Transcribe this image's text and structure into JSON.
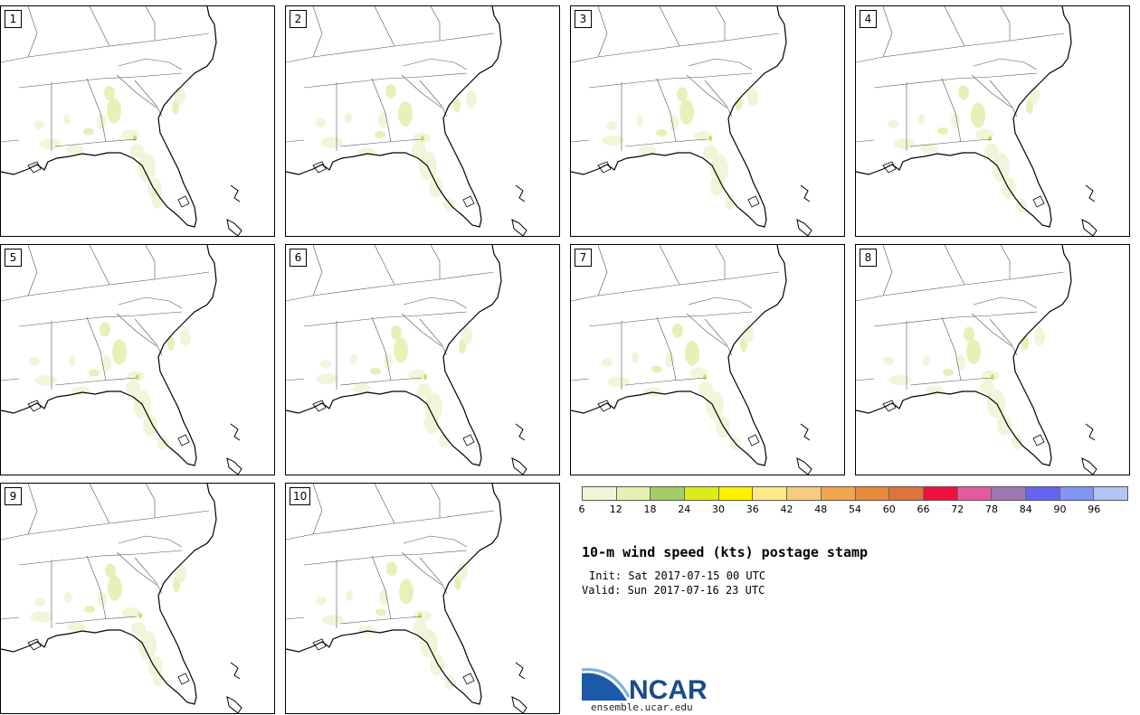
{
  "panels": [
    {
      "label": "1"
    },
    {
      "label": "2"
    },
    {
      "label": "3"
    },
    {
      "label": "4"
    },
    {
      "label": "5"
    },
    {
      "label": "6"
    },
    {
      "label": "7"
    },
    {
      "label": "8"
    },
    {
      "label": "9"
    },
    {
      "label": "10"
    }
  ],
  "colorbar": {
    "colors": [
      "#f0f5d8",
      "#e3f2b0",
      "#a4cc6a",
      "#dcec1a",
      "#fff000",
      "#ffe98a",
      "#f6cc82",
      "#f0a650",
      "#e88a3c",
      "#dc743c",
      "#e8123c",
      "#e45aa0",
      "#9c78b0",
      "#6464f0",
      "#8096f0",
      "#b4c4f4"
    ],
    "ticks": [
      "6",
      "12",
      "18",
      "24",
      "30",
      "36",
      "42",
      "48",
      "54",
      "60",
      "66",
      "72",
      "78",
      "84",
      "90",
      "96"
    ]
  },
  "title": "10-m wind speed (kts) postage stamp",
  "init": "Init: Sat 2017-07-15 00 UTC",
  "valid": "Valid: Sun 2017-07-16 23 UTC",
  "logo": {
    "text": "NCAR",
    "url": "ensemble.ucar.edu"
  }
}
